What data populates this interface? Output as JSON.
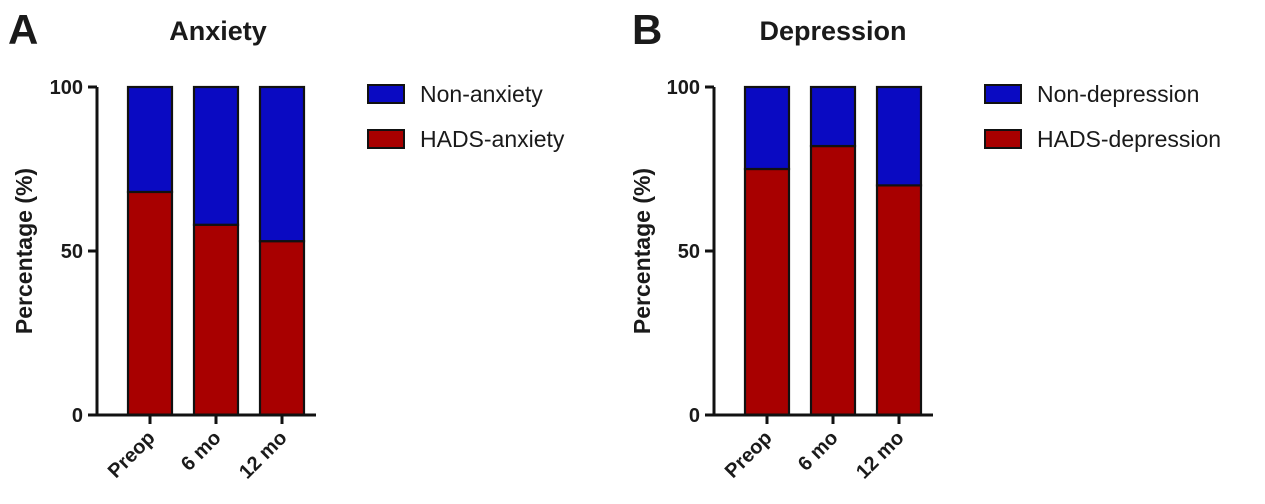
{
  "panels": [
    {
      "letter": "A",
      "title": "Anxiety",
      "ylabel": "Percentage (%)",
      "legend": [
        "Non-anxiety",
        "HADS-anxiety"
      ]
    },
    {
      "letter": "B",
      "title": "Depression",
      "ylabel": "Percentage (%)",
      "legend": [
        "Non-depression",
        "HADS-depression"
      ]
    }
  ],
  "colors": {
    "blue": "#0a0ac2",
    "red": "#a80000"
  },
  "chart_data": [
    {
      "type": "bar",
      "stacked": true,
      "title": "Anxiety",
      "xlabel": "",
      "ylabel": "Percentage (%)",
      "categories": [
        "Preop",
        "6 mo",
        "12 mo"
      ],
      "yticks": [
        "0",
        "50",
        "100"
      ],
      "ylim": [
        0,
        100
      ],
      "legend_position": "right",
      "series": [
        {
          "name": "HADS-anxiety",
          "values": [
            68,
            58,
            53
          ],
          "color": "#a80000"
        },
        {
          "name": "Non-anxiety",
          "values": [
            32,
            42,
            47
          ],
          "color": "#0a0ac2"
        }
      ]
    },
    {
      "type": "bar",
      "stacked": true,
      "title": "Depression",
      "xlabel": "",
      "ylabel": "Percentage (%)",
      "categories": [
        "Preop",
        "6 mo",
        "12 mo"
      ],
      "yticks": [
        "0",
        "50",
        "100"
      ],
      "ylim": [
        0,
        100
      ],
      "legend_position": "right",
      "series": [
        {
          "name": "HADS-depression",
          "values": [
            75,
            82,
            70
          ],
          "color": "#a80000"
        },
        {
          "name": "Non-depression",
          "values": [
            25,
            18,
            30
          ],
          "color": "#0a0ac2"
        }
      ]
    }
  ]
}
